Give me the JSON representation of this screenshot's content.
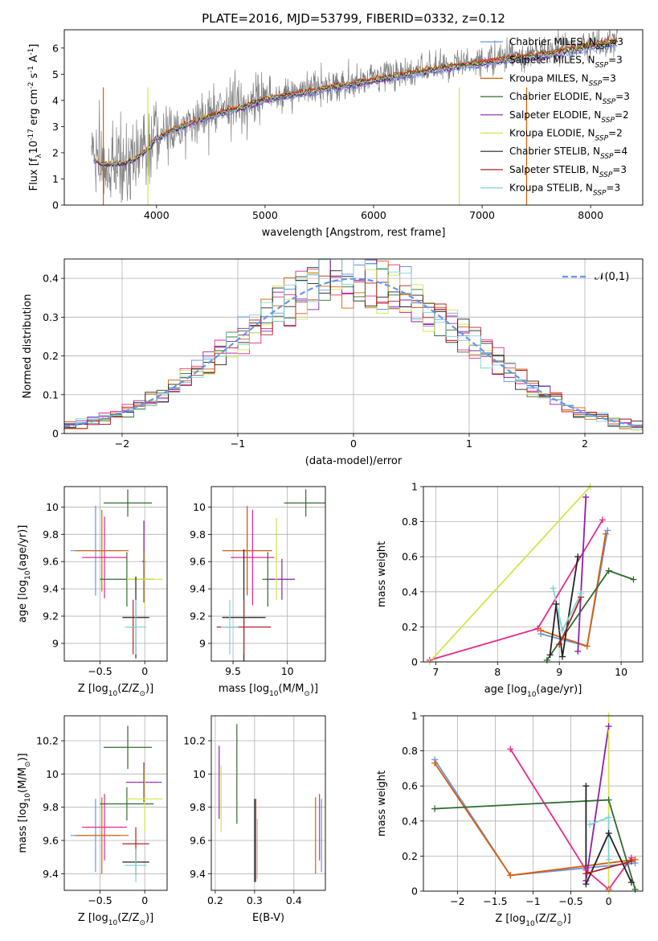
{
  "chart_data": [
    {
      "id": "spectrum",
      "type": "line",
      "title": "PLATE=2016, MJD=53799, FIBERID=0332, z=0.12",
      "xlabel": "wavelength [Angstrom, rest frame]",
      "ylabel": "Flux [f$_{\\lambda}$10$^{-17}$ erg cm$^{-2}$ s$^{-1}$ A$^{-1}$]",
      "xlim": [
        3150,
        8480
      ],
      "ylim": [
        0,
        6.7
      ],
      "xticks": [
        4000,
        5000,
        6000,
        7000,
        8000
      ],
      "yticks": [
        0,
        1,
        2,
        3,
        4,
        5,
        6
      ],
      "grid": false,
      "legend_position": "upper right",
      "data_continuum": {
        "x": [
          3400,
          3500,
          3600,
          3700,
          3800,
          3900,
          4000,
          4200,
          4400,
          4600,
          4800,
          5000,
          5200,
          5400,
          5600,
          5800,
          6000,
          6200,
          6400,
          6600,
          6800,
          7000,
          7200,
          7400,
          7600,
          7800,
          8000,
          8250
        ],
        "y": [
          1.8,
          1.6,
          1.6,
          1.65,
          1.8,
          2.1,
          2.6,
          3.0,
          3.3,
          3.6,
          3.8,
          4.1,
          4.25,
          4.4,
          4.55,
          4.7,
          4.85,
          5.0,
          5.15,
          5.3,
          5.4,
          5.5,
          5.65,
          5.75,
          5.85,
          6.0,
          6.15,
          6.35
        ]
      },
      "series": [
        {
          "name": "Chabrier MILES, N$_{SSP}$=3",
          "color": "#6495ed"
        },
        {
          "name": "Salpeter MILES, N$_{SSP}$=3",
          "color": "#e7298a"
        },
        {
          "name": "Kroupa MILES, N$_{SSP}$=3",
          "color": "#d95f02"
        },
        {
          "name": "Chabrier ELODIE, N$_{SSP}$=3",
          "color": "#2e6b2e"
        },
        {
          "name": "Salpeter ELODIE, N$_{SSP}$=2",
          "color": "#8b1fae"
        },
        {
          "name": "Kroupa ELODIE, N$_{SSP}$=2",
          "color": "#d4e44a"
        },
        {
          "name": "Chabrier STELIB, N$_{SSP}$=4",
          "color": "#222222"
        },
        {
          "name": "Salpeter STELIB, N$_{SSP}$=3",
          "color": "#b22222"
        },
        {
          "name": "Kroupa STELIB, N$_{SSP}$=3",
          "color": "#7fd4d4"
        }
      ]
    },
    {
      "id": "residuals",
      "type": "step-histogram",
      "xlabel": "(data-model)/error",
      "ylabel": "Normed distribution",
      "xlim": [
        -2.5,
        2.5
      ],
      "ylim": [
        0,
        0.45
      ],
      "xticks": [
        -2,
        -1,
        0,
        1,
        2
      ],
      "yticks": [
        0.0,
        0.1,
        0.2,
        0.3,
        0.4
      ],
      "grid": true,
      "legend": [
        {
          "name": "$\\mathcal{N}(0,1)$",
          "style": "dashed",
          "color": "#6495ed"
        }
      ],
      "legend_position": "upper right",
      "bin_width": 0.1
    },
    {
      "id": "age-vs-Z",
      "type": "errorbar",
      "xlabel": "Z [log$_{10}$(Z/Z$_{\\odot}$)]",
      "ylabel": "age  [log$_{10}$(age/yr)]",
      "xlim": [
        -0.9,
        0.25
      ],
      "ylim": [
        8.87,
        10.15
      ],
      "xticks": [
        -0.5,
        0.0
      ],
      "yticks": [
        9.0,
        9.2,
        9.4,
        9.6,
        9.8,
        10.0
      ],
      "grid": true,
      "points": [
        {
          "x": -0.55,
          "y": 9.68,
          "xerr": 0.28,
          "yerr": 0.33,
          "color": "#6495ed"
        },
        {
          "x": -0.45,
          "y": 9.63,
          "xerr": 0.25,
          "yerr": 0.3,
          "color": "#e7298a"
        },
        {
          "x": -0.48,
          "y": 9.68,
          "xerr": 0.3,
          "yerr": 0.3,
          "color": "#d95f02"
        },
        {
          "x": -0.19,
          "y": 10.03,
          "xerr": 0.27,
          "yerr": 0.1,
          "color": "#2e6b2e"
        },
        {
          "x": -0.2,
          "y": 9.47,
          "xerr": 0.3,
          "yerr": 0.2,
          "color": "#2e6b2e"
        },
        {
          "x": -0.01,
          "y": 9.6,
          "xerr": 0.02,
          "yerr": 0.3,
          "color": "#8b1fae"
        },
        {
          "x": 0.0,
          "y": 9.47,
          "xerr": 0.2,
          "yerr": 0.2,
          "color": "#d4e44a"
        },
        {
          "x": -0.1,
          "y": 9.19,
          "xerr": 0.15,
          "yerr": 0.3,
          "color": "#222222"
        },
        {
          "x": -0.13,
          "y": 9.12,
          "xerr": 0.05,
          "yerr": 0.2,
          "color": "#b22222"
        },
        {
          "x": -0.1,
          "y": 9.12,
          "xerr": 0.12,
          "yerr": 0.2,
          "color": "#7fd4d4"
        }
      ]
    },
    {
      "id": "age-vs-mass",
      "type": "errorbar",
      "xlabel": "mass [log$_{10}$(M/M$_{\\odot}$)]",
      "ylabel": "",
      "xlim": [
        9.3,
        10.35
      ],
      "ylim": [
        8.87,
        10.15
      ],
      "xticks": [
        9.5,
        10.0
      ],
      "yticks": [
        9.0,
        9.2,
        9.4,
        9.6,
        9.8,
        10.0
      ],
      "grid": true,
      "points": [
        {
          "x": 9.63,
          "y": 9.68,
          "xerr": 0.22,
          "yerr": 0.33,
          "color": "#6495ed"
        },
        {
          "x": 9.68,
          "y": 9.63,
          "xerr": 0.2,
          "yerr": 0.35,
          "color": "#e7298a"
        },
        {
          "x": 9.63,
          "y": 9.68,
          "xerr": 0.23,
          "yerr": 0.32,
          "color": "#d95f02"
        },
        {
          "x": 10.17,
          "y": 10.03,
          "xerr": 0.2,
          "yerr": 0.1,
          "color": "#2e6b2e"
        },
        {
          "x": 9.82,
          "y": 9.47,
          "xerr": 0.05,
          "yerr": 0.2,
          "color": "#2e6b2e"
        },
        {
          "x": 9.95,
          "y": 9.47,
          "xerr": 0.12,
          "yerr": 0.15,
          "color": "#8b1fae"
        },
        {
          "x": 9.9,
          "y": 9.62,
          "xerr": 0.01,
          "yerr": 0.3,
          "color": "#d4e44a"
        },
        {
          "x": 9.6,
          "y": 9.19,
          "xerr": 0.2,
          "yerr": 0.5,
          "color": "#222222"
        },
        {
          "x": 9.6,
          "y": 9.12,
          "xerr": 0.25,
          "yerr": 0.2,
          "color": "#b22222"
        },
        {
          "x": 9.47,
          "y": 9.12,
          "xerr": 0.08,
          "yerr": 0.2,
          "color": "#7fd4d4"
        }
      ]
    },
    {
      "id": "massweight-vs-age",
      "type": "line",
      "xlabel": "age  [log$_{10}$(age/yr)]",
      "ylabel": "mass weight",
      "xlim": [
        6.8,
        10.35
      ],
      "ylim": [
        0,
        1.0
      ],
      "xticks": [
        7,
        8,
        9,
        10
      ],
      "yticks": [
        0.0,
        0.2,
        0.4,
        0.6,
        0.8,
        1.0
      ],
      "grid": true,
      "series": [
        {
          "name": "Chabrier MILES",
          "color": "#6495ed",
          "x": [
            8.7,
            9.45,
            9.78
          ],
          "y": [
            0.16,
            0.09,
            0.75
          ]
        },
        {
          "name": "Salpeter MILES",
          "color": "#e7298a",
          "x": [
            6.9,
            8.65,
            9.7
          ],
          "y": [
            0.01,
            0.19,
            0.81
          ]
        },
        {
          "name": "Kroupa MILES",
          "color": "#d95f02",
          "x": [
            8.7,
            9.45,
            9.75
          ],
          "y": [
            0.18,
            0.09,
            0.73
          ]
        },
        {
          "name": "Chabrier ELODIE",
          "color": "#2e6b2e",
          "x": [
            8.8,
            9.8,
            10.2
          ],
          "y": [
            0.01,
            0.52,
            0.47
          ]
        },
        {
          "name": "Salpeter ELODIE",
          "color": "#8b1fae",
          "x": [
            9.3,
            9.43
          ],
          "y": [
            0.06,
            0.94
          ]
        },
        {
          "name": "Kroupa ELODIE",
          "color": "#d4e44a",
          "x": [
            6.9,
            9.5
          ],
          "y": [
            0.0,
            1.0
          ]
        },
        {
          "name": "Chabrier STELIB",
          "color": "#222222",
          "x": [
            8.85,
            8.95,
            9.05,
            9.3
          ],
          "y": [
            0.04,
            0.33,
            0.03,
            0.6
          ]
        },
        {
          "name": "Salpeter STELIB",
          "color": "#b22222",
          "x": [
            9.0,
            9.35
          ],
          "y": [
            0.1,
            0.37
          ]
        },
        {
          "name": "Kroupa STELIB",
          "color": "#7fd4d4",
          "x": [
            8.9,
            9.05,
            9.35
          ],
          "y": [
            0.42,
            0.18,
            0.39
          ]
        }
      ]
    },
    {
      "id": "mass-vs-Z",
      "type": "errorbar",
      "xlabel": "Z [log$_{10}$(Z/Z$_{\\odot}$)]",
      "ylabel": "mass [log$_{10}$(M/M$_{\\odot}$)]",
      "xlim": [
        -0.9,
        0.25
      ],
      "ylim": [
        9.3,
        10.35
      ],
      "xticks": [
        -0.5,
        0.0
      ],
      "yticks": [
        9.4,
        9.6,
        9.8,
        10.0,
        10.2
      ],
      "grid": true,
      "points": [
        {
          "x": -0.55,
          "y": 9.63,
          "xerr": 0.28,
          "yerr": 0.22,
          "color": "#6495ed"
        },
        {
          "x": -0.45,
          "y": 9.68,
          "xerr": 0.25,
          "yerr": 0.2,
          "color": "#e7298a"
        },
        {
          "x": -0.48,
          "y": 9.63,
          "xerr": 0.3,
          "yerr": 0.23,
          "color": "#d95f02"
        },
        {
          "x": -0.19,
          "y": 10.16,
          "xerr": 0.27,
          "yerr": 0.13,
          "color": "#2e6b2e"
        },
        {
          "x": -0.2,
          "y": 9.82,
          "xerr": 0.3,
          "yerr": 0.1,
          "color": "#2e6b2e"
        },
        {
          "x": -0.01,
          "y": 9.95,
          "xerr": 0.2,
          "yerr": 0.12,
          "color": "#8b1fae"
        },
        {
          "x": 0.0,
          "y": 9.85,
          "xerr": 0.2,
          "yerr": 0.2,
          "color": "#d4e44a"
        },
        {
          "x": -0.1,
          "y": 9.47,
          "xerr": 0.15,
          "yerr": 0.08,
          "color": "#222222"
        },
        {
          "x": -0.1,
          "y": 9.58,
          "xerr": 0.15,
          "yerr": 0.1,
          "color": "#b22222"
        },
        {
          "x": -0.1,
          "y": 9.45,
          "xerr": 0.12,
          "yerr": 0.1,
          "color": "#7fd4d4"
        }
      ]
    },
    {
      "id": "mass-vs-ebv",
      "type": "errorbar",
      "xlabel": "E(B-V)",
      "ylabel": "",
      "xlim": [
        0.19,
        0.48
      ],
      "ylim": [
        9.3,
        10.35
      ],
      "xticks": [
        0.2,
        0.3,
        0.4
      ],
      "yticks": [
        9.4,
        9.6,
        9.8,
        10.0,
        10.2
      ],
      "grid": true,
      "points": [
        {
          "x": 0.47,
          "y": 9.63,
          "yerr": 0.22,
          "color": "#6495ed"
        },
        {
          "x": 0.465,
          "y": 9.68,
          "yerr": 0.2,
          "color": "#e7298a"
        },
        {
          "x": 0.455,
          "y": 9.63,
          "yerr": 0.23,
          "color": "#d95f02"
        },
        {
          "x": 0.255,
          "y": 10.0,
          "yerr": 0.3,
          "color": "#2e6b2e"
        },
        {
          "x": 0.21,
          "y": 9.95,
          "yerr": 0.22,
          "color": "#8b1fae"
        },
        {
          "x": 0.215,
          "y": 9.85,
          "yerr": 0.2,
          "color": "#d4e44a"
        },
        {
          "x": 0.3,
          "y": 9.6,
          "yerr": 0.25,
          "color": "#222222"
        },
        {
          "x": 0.303,
          "y": 9.6,
          "yerr": 0.25,
          "color": "#b22222"
        },
        {
          "x": 0.307,
          "y": 9.55,
          "yerr": 0.18,
          "color": "#7fd4d4"
        }
      ]
    },
    {
      "id": "massweight-vs-Z",
      "type": "line",
      "xlabel": "Z [log$_{10}$(Z/Z$_{\\odot}$)]",
      "ylabel": "mass weight",
      "xlim": [
        -2.45,
        0.45
      ],
      "ylim": [
        0,
        1.0
      ],
      "xticks": [
        -2.0,
        -1.5,
        -1.0,
        -0.5,
        0.0
      ],
      "yticks": [
        0.0,
        0.2,
        0.4,
        0.6,
        0.8,
        1.0
      ],
      "grid": true,
      "series": [
        {
          "name": "Chabrier MILES",
          "color": "#6495ed",
          "x": [
            -2.3,
            -1.3,
            0.35
          ],
          "y": [
            0.75,
            0.09,
            0.16
          ]
        },
        {
          "name": "Salpeter MILES",
          "color": "#e7298a",
          "x": [
            -1.3,
            -0.3,
            0.0,
            0.3
          ],
          "y": [
            0.81,
            0.12,
            0.01,
            0.19
          ]
        },
        {
          "name": "Kroupa MILES",
          "color": "#d95f02",
          "x": [
            -2.3,
            -1.3,
            0.35
          ],
          "y": [
            0.73,
            0.09,
            0.18
          ]
        },
        {
          "name": "Chabrier ELODIE",
          "color": "#2e6b2e",
          "x": [
            -2.3,
            0.0,
            0.35
          ],
          "y": [
            0.47,
            0.52,
            0.01
          ]
        },
        {
          "name": "Salpeter ELODIE",
          "color": "#8b1fae",
          "x": [
            -0.3,
            0.0
          ],
          "y": [
            0.06,
            0.94
          ]
        },
        {
          "name": "Kroupa ELODIE",
          "color": "#d4e44a",
          "x": [
            0.0,
            0.0
          ],
          "y": [
            0.0,
            1.0
          ]
        },
        {
          "name": "Chabrier STELIB",
          "color": "#222222",
          "x": [
            -0.3,
            -0.3,
            0.0,
            0.3
          ],
          "y": [
            0.6,
            0.04,
            0.33,
            0.05
          ]
        },
        {
          "name": "Salpeter STELIB",
          "color": "#b22222",
          "x": [
            -0.3,
            0.3
          ],
          "y": [
            0.1,
            0.17
          ]
        },
        {
          "name": "Kroupa STELIB",
          "color": "#7fd4d4",
          "x": [
            -0.25,
            0.0,
            0.0
          ],
          "y": [
            0.38,
            0.42,
            0.18
          ]
        }
      ]
    }
  ]
}
